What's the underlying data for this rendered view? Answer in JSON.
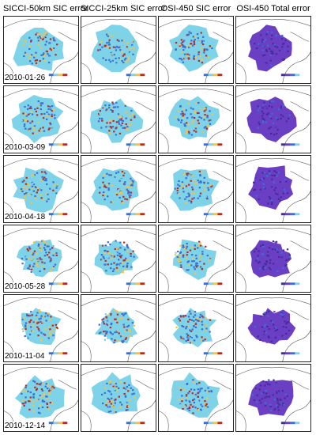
{
  "figure": {
    "columns": [
      {
        "title": "SICCI-50km SIC error",
        "style": "sic"
      },
      {
        "title": "SICCI-25km SIC error",
        "style": "sic"
      },
      {
        "title": "OSI-450 SIC error",
        "style": "sic"
      },
      {
        "title": "OSI-450 Total error",
        "style": "total"
      }
    ],
    "rows": [
      {
        "date": "2010-01-26"
      },
      {
        "date": "2010-03-09"
      },
      {
        "date": "2010-04-18"
      },
      {
        "date": "2010-05-28"
      },
      {
        "date": "2010-11-04"
      },
      {
        "date": "2010-12-14"
      }
    ],
    "palette": {
      "ocean": "#ffffff",
      "coastline": "#555555",
      "sic_low": "#3b6fd6",
      "sic_mid": "#7fd3e8",
      "sic_high": "#f5c242",
      "sic_max": "#c0281e",
      "total_low": "#4a2a9a",
      "total_mid": "#6a3fc4"
    }
  }
}
